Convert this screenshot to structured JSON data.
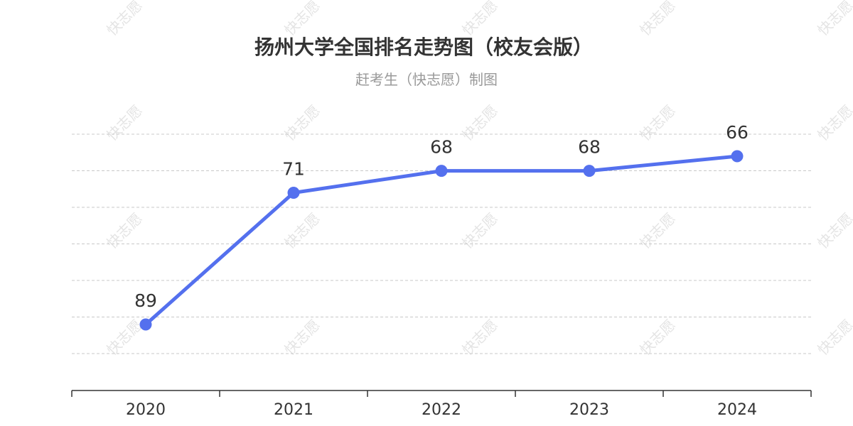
{
  "chart_data": {
    "type": "line",
    "title": "扬州大学全国排名走势图（校友会版）",
    "subtitle": "赶考生（快志愿）制图",
    "categories": [
      "2020",
      "2021",
      "2022",
      "2023",
      "2024"
    ],
    "series": [
      {
        "values": [
          89,
          71,
          68,
          68,
          66
        ]
      }
    ],
    "ylim": [
      60,
      95
    ],
    "y_inverted": true,
    "grid": true,
    "line_color": "#5470ee",
    "gridline_color": "#c8c8c8",
    "watermark_text": "快志愿"
  }
}
